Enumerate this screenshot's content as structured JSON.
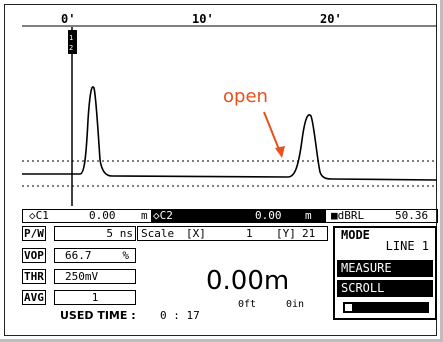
{
  "axis": {
    "ticks": [
      {
        "label": "0'"
      },
      {
        "label": "10'"
      },
      {
        "label": "20'"
      }
    ]
  },
  "annotation": {
    "text": "open",
    "color": "#e8501c"
  },
  "cursor_bar": {
    "c1_label": "◇C1",
    "c1_value": "0.00",
    "c1_unit": "m",
    "c2_label": "◇C2",
    "c2_value": "0.00",
    "c2_unit": "m",
    "dbrl_label": "■dBRL",
    "dbrl_value": "50.36"
  },
  "params": {
    "pw": {
      "label": "P/W",
      "value": "5",
      "unit": "ns"
    },
    "vop": {
      "label": "VOP",
      "value": "66.7",
      "unit": "%"
    },
    "thr": {
      "label": "THR",
      "value": "250mV"
    },
    "avg": {
      "label": "AVG",
      "value": "1"
    }
  },
  "scale": {
    "label": "Scale",
    "x_label": "[X]",
    "x_value": "1",
    "y_label": "[Y]",
    "y_value": "21"
  },
  "used_time": {
    "label": "USED TIME :",
    "value": "0 : 17"
  },
  "distance": {
    "main": "0.00m",
    "ft": "0ft",
    "in": "0in"
  },
  "mode": {
    "label": "MODE",
    "value": "LINE 1",
    "measure": "MEASURE",
    "scroll": "SCROLL"
  },
  "battery": {
    "level_fraction": 0.08
  },
  "colors": {
    "trace": "#000000",
    "annotation": "#e8501c",
    "highlight": "#000000"
  }
}
